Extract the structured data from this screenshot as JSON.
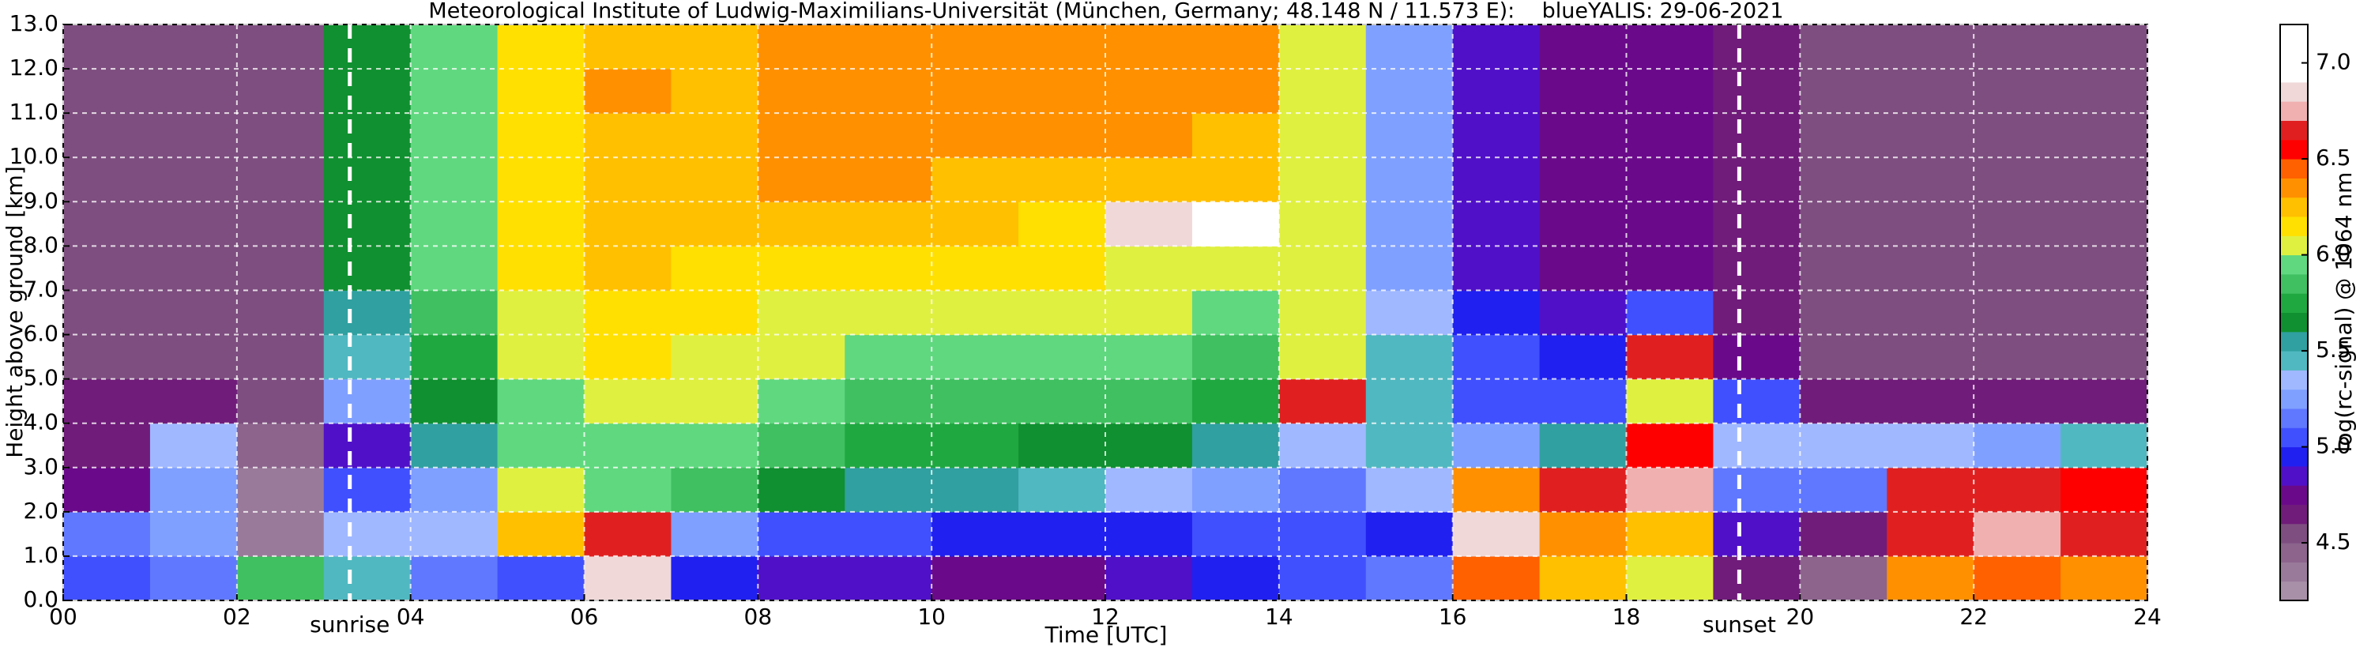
{
  "chart_data": {
    "type": "heatmap",
    "title": "Meteorological Institute of Ludwig-Maximilians-Universität (München, Germany; 48.148 N / 11.573 E):    blueYALIS: 29-06-2021",
    "xlabel": "Time [UTC]",
    "ylabel": "Height above ground [km]",
    "xlim": [
      0,
      24
    ],
    "ylim": [
      0,
      13
    ],
    "xticks": [
      {
        "value": 0,
        "label": "00"
      },
      {
        "value": 2,
        "label": "02"
      },
      {
        "value": 4,
        "label": "04"
      },
      {
        "value": 6,
        "label": "06"
      },
      {
        "value": 8,
        "label": "08"
      },
      {
        "value": 10,
        "label": "10"
      },
      {
        "value": 12,
        "label": "12"
      },
      {
        "value": 14,
        "label": "14"
      },
      {
        "value": 16,
        "label": "16"
      },
      {
        "value": 18,
        "label": "18"
      },
      {
        "value": 20,
        "label": "20"
      },
      {
        "value": 22,
        "label": "22"
      },
      {
        "value": 24,
        "label": "24"
      }
    ],
    "yticks": [
      {
        "value": 0,
        "label": "0.0"
      },
      {
        "value": 1,
        "label": "1.0"
      },
      {
        "value": 2,
        "label": "2.0"
      },
      {
        "value": 3,
        "label": "3.0"
      },
      {
        "value": 4,
        "label": "4.0"
      },
      {
        "value": 5,
        "label": "5.0"
      },
      {
        "value": 6,
        "label": "6.0"
      },
      {
        "value": 7,
        "label": "7.0"
      },
      {
        "value": 8,
        "label": "8.0"
      },
      {
        "value": 9,
        "label": "9.0"
      },
      {
        "value": 10,
        "label": "10.0"
      },
      {
        "value": 11,
        "label": "11.0"
      },
      {
        "value": 12,
        "label": "12.0"
      },
      {
        "value": 13,
        "label": "13.0"
      }
    ],
    "grid": true,
    "annotations": [
      {
        "text": "sunrise",
        "x": 3.3
      },
      {
        "text": "sunset",
        "x": 19.3
      }
    ],
    "values": [
      [
        5.0,
        5.1,
        4.7,
        4.6,
        4.6,
        4.5,
        4.5,
        4.5,
        4.5,
        4.5,
        4.5,
        4.5,
        4.5
      ],
      [
        5.1,
        5.2,
        5.2,
        5.3,
        4.6,
        4.5,
        4.5,
        4.5,
        4.5,
        4.5,
        4.5,
        4.5,
        4.5
      ],
      [
        5.8,
        4.3,
        4.3,
        4.4,
        4.5,
        4.5,
        4.5,
        4.5,
        4.5,
        4.5,
        4.5,
        4.5,
        4.5
      ],
      [
        5.4,
        5.3,
        5.0,
        4.8,
        5.2,
        5.4,
        5.5,
        5.6,
        5.6,
        5.6,
        5.6,
        5.6,
        5.6
      ],
      [
        5.1,
        5.3,
        5.2,
        5.5,
        5.6,
        5.7,
        5.8,
        5.9,
        5.9,
        5.9,
        5.9,
        5.9,
        5.9
      ],
      [
        5.0,
        6.2,
        6.0,
        5.9,
        5.9,
        6.0,
        6.0,
        6.1,
        6.1,
        6.1,
        6.1,
        6.1,
        6.1
      ],
      [
        6.8,
        6.6,
        5.9,
        5.9,
        6.0,
        6.1,
        6.1,
        6.2,
        6.2,
        6.2,
        6.2,
        6.3,
        6.2
      ],
      [
        4.9,
        5.2,
        5.8,
        5.9,
        6.0,
        6.0,
        6.1,
        6.1,
        6.2,
        6.2,
        6.2,
        6.2,
        6.2
      ],
      [
        4.8,
        5.0,
        5.6,
        5.8,
        5.9,
        6.0,
        6.0,
        6.1,
        6.2,
        6.3,
        6.3,
        6.3,
        6.3
      ],
      [
        4.8,
        5.0,
        5.5,
        5.7,
        5.8,
        5.9,
        6.0,
        6.1,
        6.2,
        6.3,
        6.3,
        6.3,
        6.3
      ],
      [
        4.7,
        4.9,
        5.5,
        5.7,
        5.8,
        5.9,
        6.0,
        6.1,
        6.2,
        6.2,
        6.3,
        6.3,
        6.3
      ],
      [
        4.7,
        4.9,
        5.4,
        5.6,
        5.8,
        5.9,
        6.0,
        6.1,
        6.1,
        6.2,
        6.3,
        6.3,
        6.3
      ],
      [
        4.8,
        4.9,
        5.3,
        5.6,
        5.8,
        5.9,
        6.0,
        6.0,
        6.8,
        6.2,
        6.3,
        6.3,
        6.3
      ],
      [
        4.9,
        5.0,
        5.2,
        5.5,
        5.7,
        5.8,
        5.9,
        6.0,
        6.9,
        6.2,
        6.2,
        6.3,
        6.3
      ],
      [
        5.0,
        5.0,
        5.1,
        5.3,
        6.6,
        6.0,
        6.0,
        6.0,
        6.0,
        6.0,
        6.0,
        6.0,
        6.0
      ],
      [
        5.1,
        4.9,
        5.3,
        5.4,
        5.4,
        5.4,
        5.3,
        5.2,
        5.2,
        5.2,
        5.2,
        5.2,
        5.2
      ],
      [
        6.4,
        6.8,
        6.3,
        5.2,
        5.0,
        5.0,
        4.9,
        4.8,
        4.8,
        4.8,
        4.8,
        4.8,
        4.8
      ],
      [
        6.2,
        6.3,
        6.6,
        5.5,
        5.0,
        4.9,
        4.8,
        4.7,
        4.7,
        4.7,
        4.7,
        4.7,
        4.7
      ],
      [
        6.0,
        6.2,
        6.7,
        6.5,
        6.0,
        6.6,
        5.0,
        4.7,
        4.7,
        4.7,
        4.7,
        4.7,
        4.7
      ],
      [
        4.6,
        4.8,
        5.1,
        5.3,
        5.0,
        4.7,
        4.6,
        4.6,
        4.6,
        4.6,
        4.6,
        4.6,
        4.6
      ],
      [
        4.4,
        4.6,
        5.1,
        5.3,
        4.6,
        4.5,
        4.5,
        4.5,
        4.5,
        4.5,
        4.5,
        4.5,
        4.5
      ],
      [
        6.3,
        6.6,
        6.6,
        5.3,
        4.6,
        4.5,
        4.5,
        4.5,
        4.5,
        4.5,
        4.5,
        4.5,
        4.5
      ],
      [
        6.4,
        6.7,
        6.6,
        5.2,
        4.6,
        4.5,
        4.5,
        4.5,
        4.5,
        4.5,
        4.5,
        4.5,
        4.5
      ],
      [
        6.3,
        6.6,
        6.5,
        5.4,
        4.6,
        4.5,
        4.5,
        4.5,
        4.5,
        4.5,
        4.5,
        4.5,
        4.5
      ]
    ],
    "colorbar": {
      "label": "log(rc-signal) @ 1064 nm",
      "lim": [
        4.2,
        7.2
      ],
      "ticks": [
        {
          "value": 4.5,
          "label": "4.5"
        },
        {
          "value": 5.0,
          "label": "5.0"
        },
        {
          "value": 5.5,
          "label": "5.5"
        },
        {
          "value": 6.0,
          "label": "6.0"
        },
        {
          "value": 6.5,
          "label": "6.5"
        },
        {
          "value": 7.0,
          "label": "7.0"
        }
      ],
      "colors": [
        "#a890a8",
        "#9a7a9a",
        "#8c648c",
        "#7e4e80",
        "#701c7a",
        "#6a0a8a",
        "#5010c8",
        "#2020f0",
        "#4050ff",
        "#6078ff",
        "#80a0ff",
        "#a0b8ff",
        "#50b8c0",
        "#30a0a0",
        "#109030",
        "#20a840",
        "#40c060",
        "#60d880",
        "#e0f040",
        "#ffe000",
        "#ffc000",
        "#ff9000",
        "#ff6000",
        "#ff0000",
        "#e02020",
        "#f0b0b0",
        "#f0d8d8",
        "#ffffff",
        "#ffffff",
        "#ffffff"
      ]
    }
  }
}
